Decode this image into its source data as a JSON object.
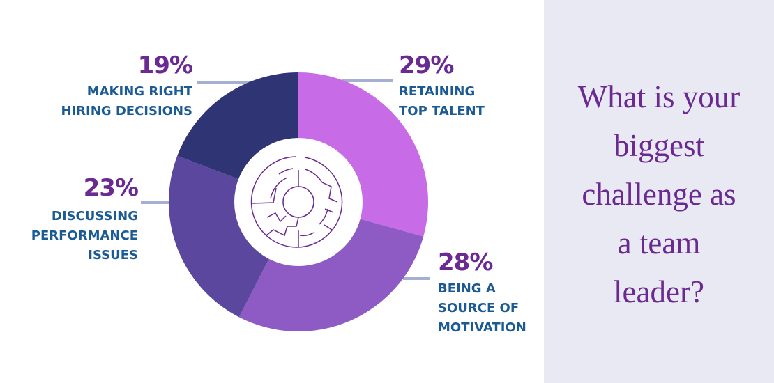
{
  "chart_data": {
    "type": "pie",
    "variant": "donut",
    "categories": [
      "RETAINING TOP TALENT",
      "BEING A SOURCE OF MOTIVATION",
      "DISCUSSING PERFORMANCE ISSUES",
      "MAKING RIGHT HIRING DECISIONS"
    ],
    "values": [
      29,
      28,
      23,
      19
    ],
    "value_labels": [
      "29%",
      "28%",
      "23%",
      "19%"
    ],
    "colors": [
      "#c86be6",
      "#8e5bc4",
      "#5b489e",
      "#2e3474"
    ],
    "label_lines": [
      "RETAINING\nTOP TALENT",
      "BEING A\nSOURCE OF\nMOTIVATION",
      "DISCUSSING\nPERFORMANCE\nISSUES",
      "MAKING RIGHT\nHIRING DECISIONS"
    ],
    "center_icon": "maze-icon"
  },
  "panel": {
    "question": "What is your\nbiggest\nchallenge as\na team\nleader?",
    "background": "#e8e9f3"
  }
}
